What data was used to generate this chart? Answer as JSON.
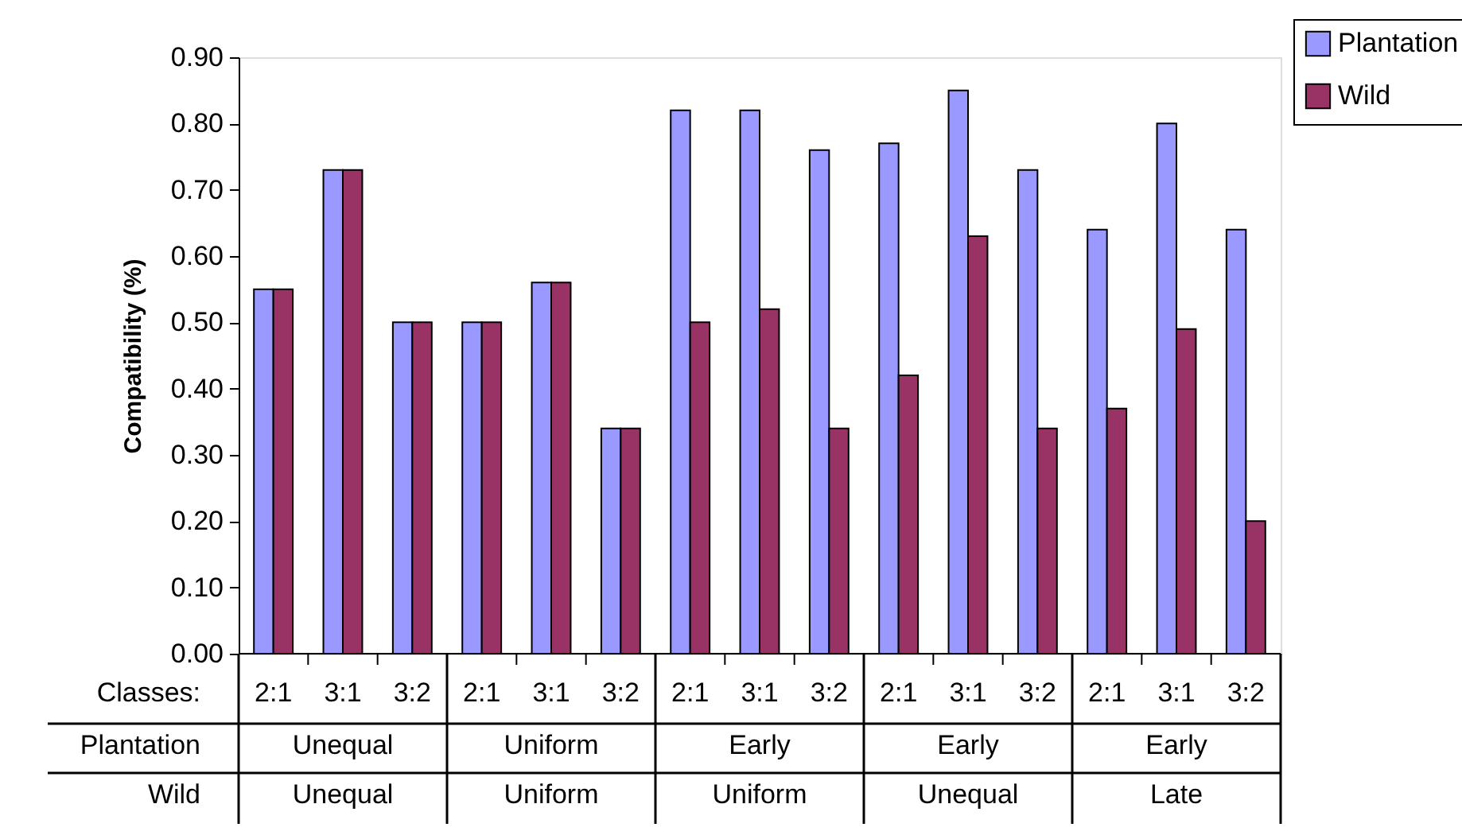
{
  "chart_data": {
    "type": "bar",
    "ylabel": "Compatibility (%)",
    "categories": [
      "2:1",
      "3:1",
      "3:2",
      "2:1",
      "3:1",
      "3:2",
      "2:1",
      "3:1",
      "3:2",
      "2:1",
      "3:1",
      "3:2",
      "2:1",
      "3:1",
      "3:2"
    ],
    "series": [
      {
        "name": "Plantation",
        "color": "#9999ff",
        "values": [
          0.55,
          0.73,
          0.5,
          0.5,
          0.56,
          0.34,
          0.82,
          0.82,
          0.76,
          0.77,
          0.85,
          0.73,
          0.64,
          0.8,
          0.64
        ]
      },
      {
        "name": "Wild",
        "color": "#993366",
        "values": [
          0.55,
          0.73,
          0.5,
          0.5,
          0.56,
          0.34,
          0.5,
          0.52,
          0.34,
          0.42,
          0.63,
          0.34,
          0.37,
          0.49,
          0.2
        ]
      }
    ],
    "ylim": [
      0,
      0.9
    ],
    "yticks": [
      {
        "value": 0,
        "label": "0.00"
      },
      {
        "value": 0.1,
        "label": "0.10"
      },
      {
        "value": 0.2,
        "label": "0.20"
      },
      {
        "value": 0.3,
        "label": "0.30"
      },
      {
        "value": 0.4,
        "label": "0.40"
      },
      {
        "value": 0.5,
        "label": "0.50"
      },
      {
        "value": 0.6,
        "label": "0.60"
      },
      {
        "value": 0.7,
        "label": "0.70"
      },
      {
        "value": 0.8,
        "label": "0.80"
      },
      {
        "value": 0.9,
        "label": "0.90"
      }
    ],
    "grid": false,
    "legend": "top right",
    "annotations": [
      "Classes:",
      "Plantation",
      "Wild",
      "Unequal",
      "Uniform",
      "Early",
      "Early",
      "Early",
      "Unequal",
      "Uniform",
      "Uniform",
      "Unequal",
      "Late"
    ]
  }
}
